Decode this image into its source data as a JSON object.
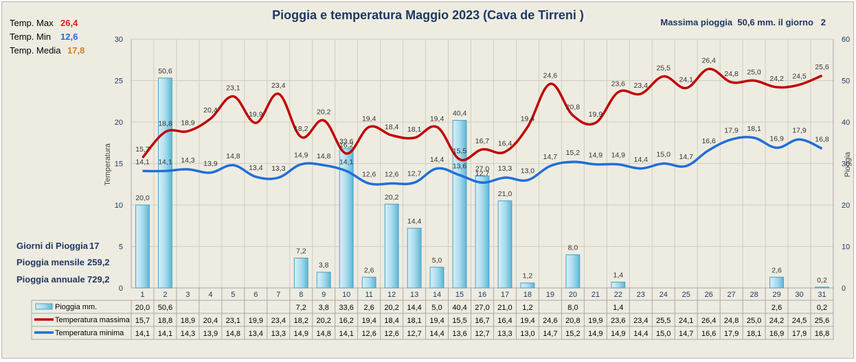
{
  "title": "Pioggia e temperatura Maggio 2023 (Cava de Tirreni )",
  "max_rain": {
    "label": "Massima pioggia",
    "value": "50,6 mm.",
    "day_label": "il giorno",
    "day": "2"
  },
  "stats": [
    {
      "label": "Temp. Max",
      "value": "26,4",
      "color": "#e02020"
    },
    {
      "label": "Temp. Min",
      "value": "12,6",
      "color": "#1f6fd8"
    },
    {
      "label": "Temp. Media",
      "value": "17,8",
      "color": "#e07b1a"
    }
  ],
  "summary": [
    {
      "label": "Giorni di Pioggia",
      "value": "17"
    },
    {
      "label": "Pioggia mensile",
      "value": "259,2"
    },
    {
      "label": "Pioggia annuale",
      "value": "729,2"
    }
  ],
  "chart_data": {
    "type": "bar+line",
    "title": "Pioggia e temperatura Maggio 2023 (Cava de Tirreni )",
    "categories": [
      "1",
      "2",
      "3",
      "4",
      "5",
      "6",
      "7",
      "8",
      "9",
      "10",
      "11",
      "12",
      "13",
      "14",
      "15",
      "16",
      "17",
      "18",
      "19",
      "20",
      "21",
      "22",
      "23",
      "24",
      "25",
      "26",
      "27",
      "28",
      "29",
      "30",
      "31"
    ],
    "ylabel_left": "Temperatura",
    "ylabel_right": "Pioggia",
    "ylim_left": [
      0,
      30
    ],
    "ylim_right": [
      0,
      60
    ],
    "yticks_left": [
      "0",
      "5",
      "10",
      "15",
      "20",
      "25",
      "30"
    ],
    "yticks_right": [
      "0",
      "10",
      "20",
      "30",
      "40",
      "50",
      "60"
    ],
    "series": [
      {
        "name": "Pioggia mm.",
        "type": "bar",
        "axis": "right",
        "color": "#9ad3e8",
        "values": [
          20.0,
          50.6,
          null,
          null,
          null,
          null,
          null,
          7.2,
          3.8,
          33.6,
          2.6,
          20.2,
          14.4,
          5.0,
          40.4,
          27.0,
          21.0,
          1.2,
          null,
          8.0,
          null,
          1.4,
          null,
          null,
          null,
          null,
          null,
          null,
          2.6,
          null,
          0.2
        ],
        "labels": [
          "20,0",
          "50,6",
          "",
          "",
          "",
          "",
          "",
          "7,2",
          "3,8",
          "33,6",
          "2,6",
          "20,2",
          "14,4",
          "5,0",
          "40,4",
          "27,0",
          "21,0",
          "1,2",
          "",
          "8,0",
          "",
          "1,4",
          "",
          "",
          "",
          "",
          "",
          "",
          "2,6",
          "",
          "0,2"
        ]
      },
      {
        "name": "Temperatura massima",
        "type": "line",
        "axis": "left",
        "color": "#c00000",
        "values": [
          15.7,
          18.8,
          18.9,
          20.4,
          23.1,
          19.9,
          23.4,
          18.2,
          20.2,
          16.2,
          19.4,
          18.4,
          18.1,
          19.4,
          15.5,
          16.7,
          16.4,
          19.4,
          24.6,
          20.8,
          19.9,
          23.6,
          23.4,
          25.5,
          24.1,
          26.4,
          24.8,
          25.0,
          24.2,
          24.5,
          25.6
        ],
        "labels": [
          "15,7",
          "18,8",
          "18,9",
          "20,4",
          "23,1",
          "19,9",
          "23,4",
          "18,2",
          "20,2",
          "16,2",
          "19,4",
          "18,4",
          "18,1",
          "19,4",
          "15,5",
          "16,7",
          "16,4",
          "19,4",
          "24,6",
          "20,8",
          "19,9",
          "23,6",
          "23,4",
          "25,5",
          "24,1",
          "26,4",
          "24,8",
          "25,0",
          "24,2",
          "24,5",
          "25,6"
        ]
      },
      {
        "name": "Temperatura minima",
        "type": "line",
        "axis": "left",
        "color": "#1f6fd8",
        "values": [
          14.1,
          14.1,
          14.3,
          13.9,
          14.8,
          13.4,
          13.3,
          14.9,
          14.8,
          14.1,
          12.6,
          12.6,
          12.7,
          14.4,
          13.6,
          12.7,
          13.3,
          13.0,
          14.7,
          15.2,
          14.9,
          14.9,
          14.4,
          15.0,
          14.7,
          16.6,
          17.9,
          18.1,
          16.9,
          17.9,
          16.8
        ],
        "labels": [
          "14,1",
          "14,1",
          "14,3",
          "13,9",
          "14,8",
          "13,4",
          "13,3",
          "14,9",
          "14,8",
          "14,1",
          "12,6",
          "12,6",
          "12,7",
          "14,4",
          "13,6",
          "12,7",
          "13,3",
          "13,0",
          "14,7",
          "15,2",
          "14,9",
          "14,9",
          "14,4",
          "15,0",
          "14,7",
          "16,6",
          "17,9",
          "18,1",
          "16,9",
          "17,9",
          "16,8"
        ]
      }
    ],
    "grid": true,
    "legend": "data-table-bottom"
  }
}
